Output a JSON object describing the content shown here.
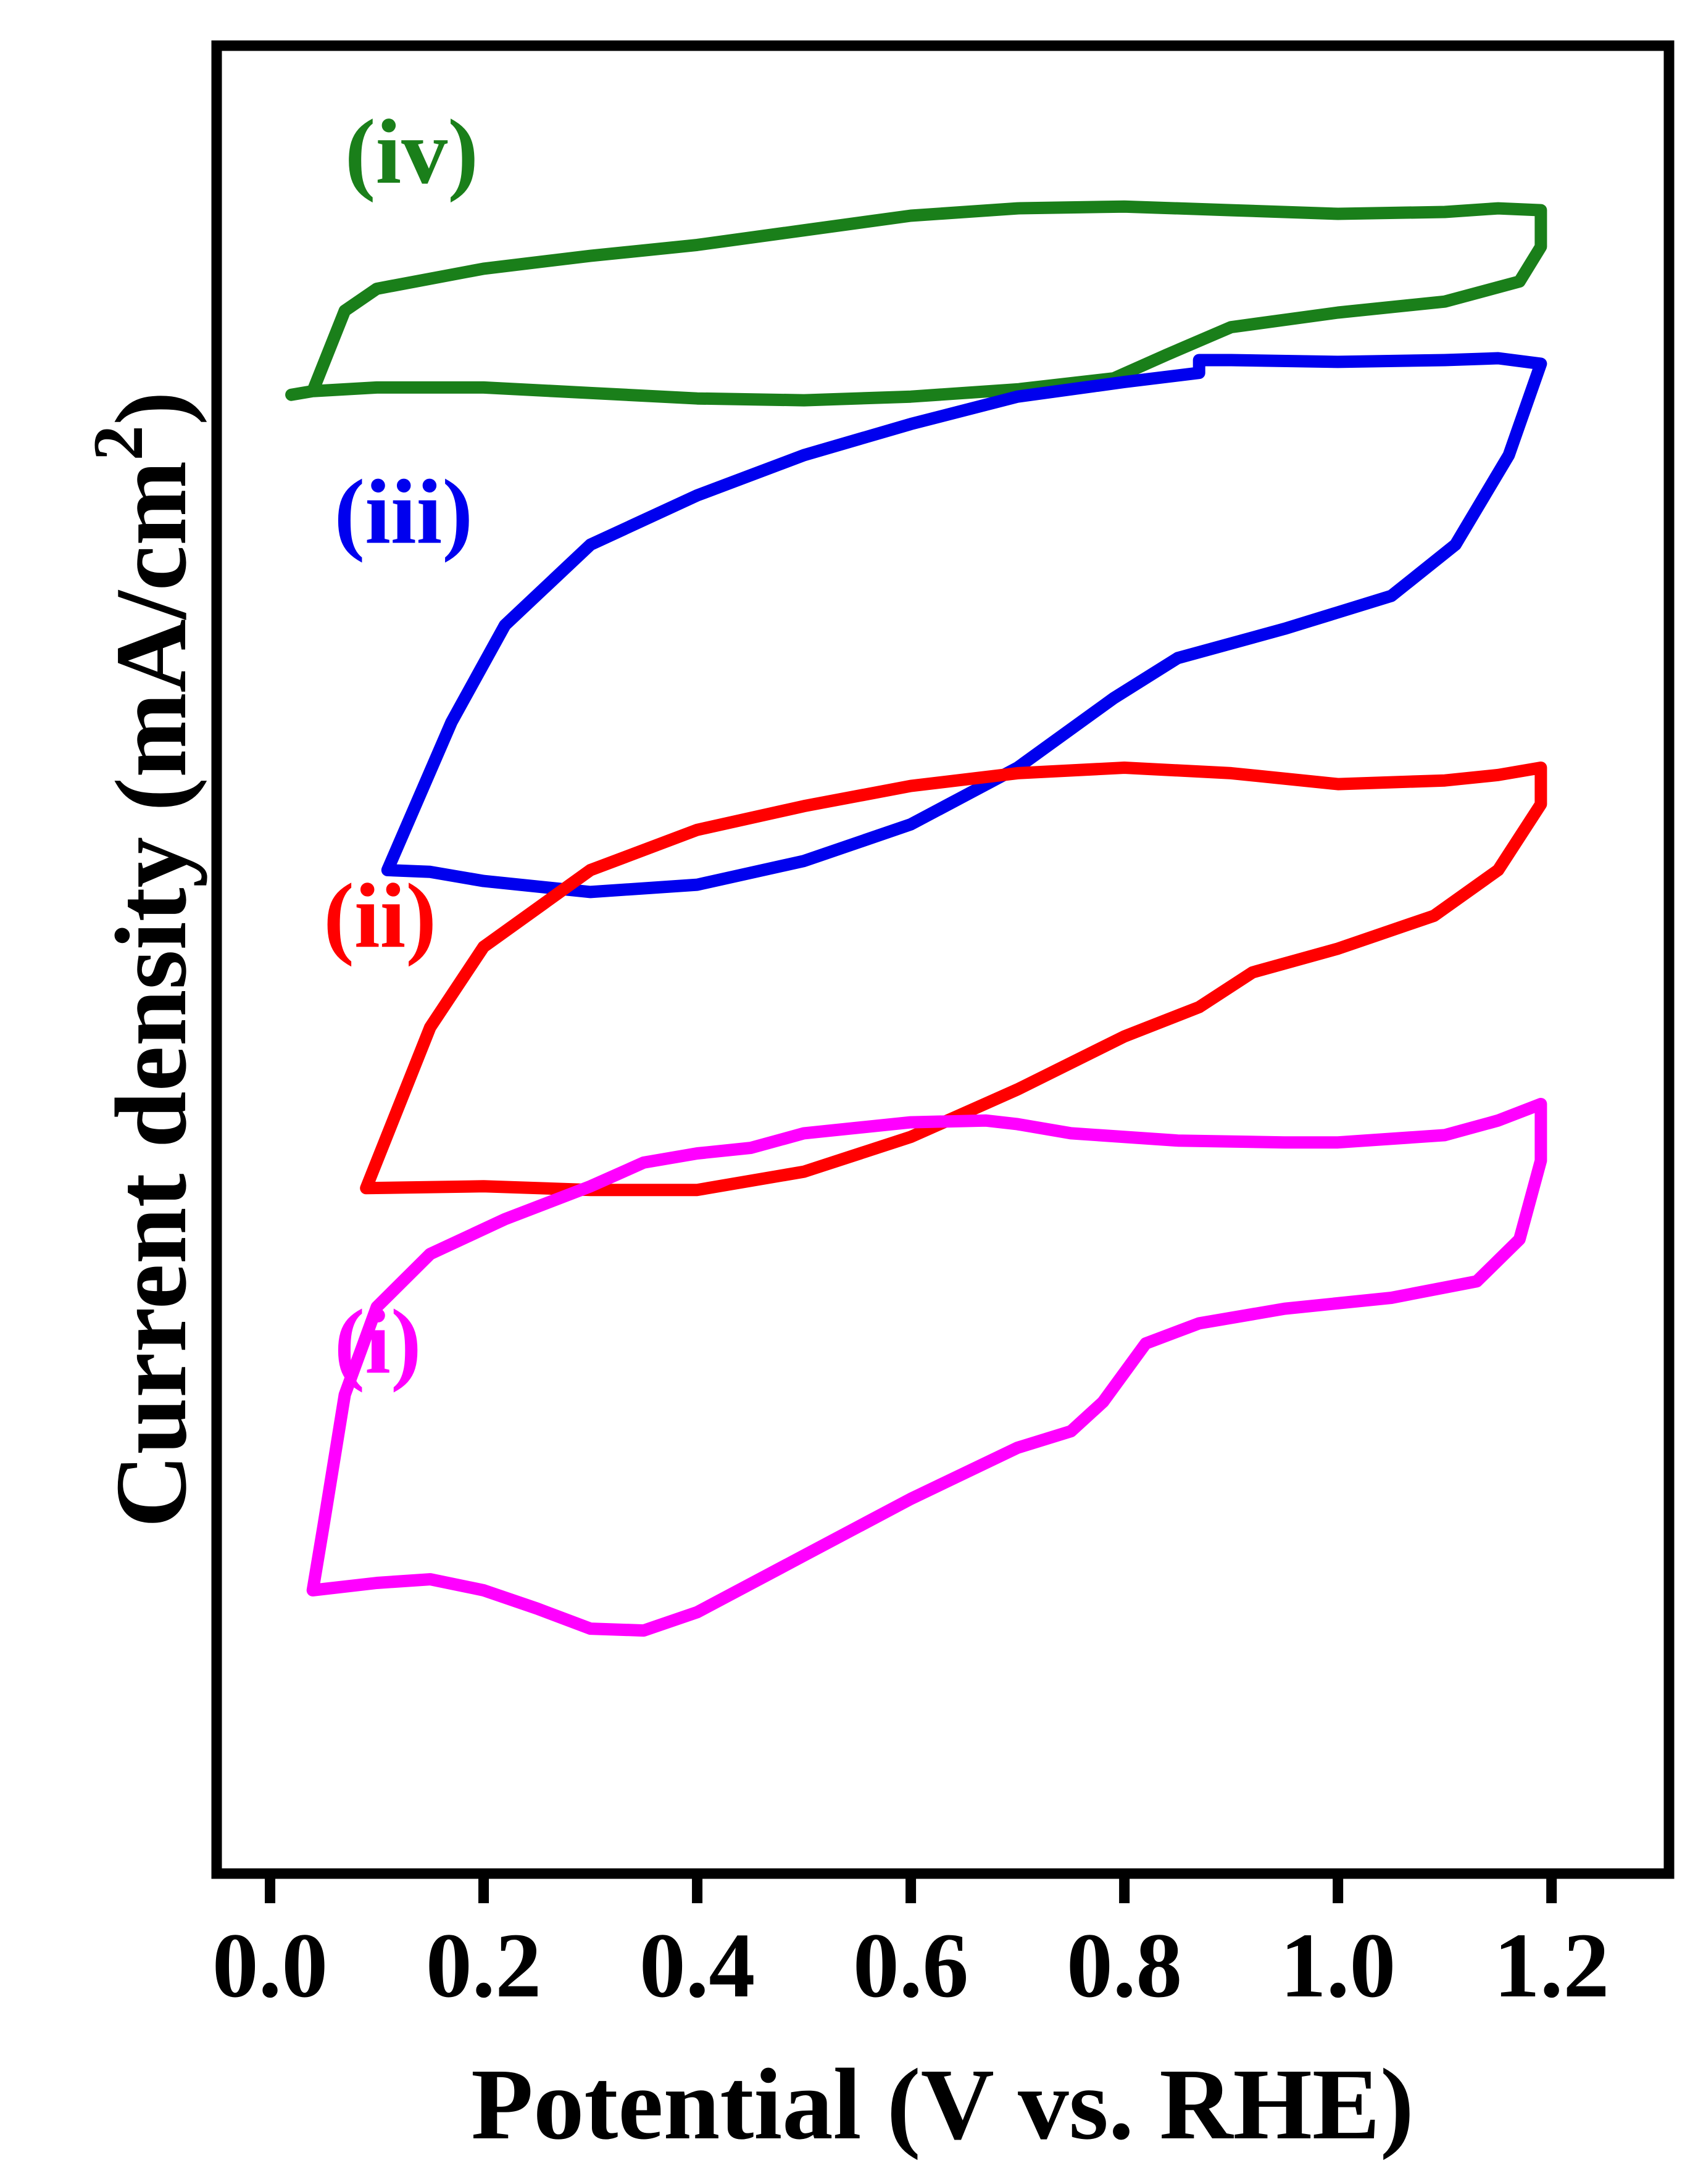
{
  "chart_data": {
    "type": "line",
    "title": "",
    "xlabel": "Potential (V vs. RHE)",
    "ylabel": "Current density (mA/cm",
    "ylabel_sup": "2",
    "ylabel_close": ")",
    "xlim": [
      -0.05,
      1.31
    ],
    "ylim": [
      0,
      100
    ],
    "y_ticks_shown": false,
    "grid": false,
    "x_ticks": [
      0.0,
      0.2,
      0.4,
      0.6,
      0.8,
      1.0,
      1.2
    ],
    "x_tick_labels": [
      "0.0",
      "0.2",
      "0.4",
      "0.6",
      "0.8",
      "1.0",
      "1.2"
    ],
    "series": [
      {
        "name": "(iv)",
        "color": "#1a7f1a",
        "label_at": [
          0.07,
          92.5
        ],
        "points": [
          [
            0.02,
            80.9
          ],
          [
            0.04,
            81.1
          ],
          [
            0.1,
            81.3
          ],
          [
            0.2,
            81.3
          ],
          [
            0.3,
            81.0
          ],
          [
            0.4,
            80.7
          ],
          [
            0.5,
            80.6
          ],
          [
            0.6,
            80.8
          ],
          [
            0.7,
            81.2
          ],
          [
            0.79,
            81.8
          ],
          [
            0.84,
            83.1
          ],
          [
            0.9,
            84.6
          ],
          [
            1.0,
            85.4
          ],
          [
            1.1,
            86.0
          ],
          [
            1.17,
            87.1
          ],
          [
            1.19,
            89.0
          ],
          [
            1.19,
            91.0
          ],
          [
            1.15,
            91.1
          ],
          [
            1.1,
            90.9
          ],
          [
            1.0,
            90.8
          ],
          [
            0.9,
            91.0
          ],
          [
            0.8,
            91.2
          ],
          [
            0.7,
            91.1
          ],
          [
            0.6,
            90.7
          ],
          [
            0.5,
            89.9
          ],
          [
            0.4,
            89.1
          ],
          [
            0.3,
            88.5
          ],
          [
            0.2,
            87.8
          ],
          [
            0.1,
            86.7
          ],
          [
            0.07,
            85.5
          ],
          [
            0.04,
            81.1
          ]
        ]
      },
      {
        "name": "(iii)",
        "color": "#0000ee",
        "label_at": [
          0.06,
          72.8
        ],
        "points": [
          [
            0.11,
            54.9
          ],
          [
            0.15,
            54.8
          ],
          [
            0.2,
            54.3
          ],
          [
            0.3,
            53.7
          ],
          [
            0.4,
            54.1
          ],
          [
            0.5,
            55.4
          ],
          [
            0.6,
            57.4
          ],
          [
            0.7,
            60.5
          ],
          [
            0.79,
            64.3
          ],
          [
            0.85,
            66.5
          ],
          [
            0.95,
            68.1
          ],
          [
            1.05,
            69.9
          ],
          [
            1.11,
            72.7
          ],
          [
            1.16,
            77.6
          ],
          [
            1.19,
            82.6
          ],
          [
            1.15,
            82.9
          ],
          [
            1.1,
            82.8
          ],
          [
            1.0,
            82.7
          ],
          [
            0.9,
            82.8
          ],
          [
            0.87,
            82.8
          ],
          [
            0.87,
            82.1
          ],
          [
            0.8,
            81.6
          ],
          [
            0.7,
            80.8
          ],
          [
            0.6,
            79.3
          ],
          [
            0.5,
            77.6
          ],
          [
            0.4,
            75.4
          ],
          [
            0.3,
            72.7
          ],
          [
            0.22,
            68.3
          ],
          [
            0.17,
            63.0
          ],
          [
            0.11,
            54.9
          ]
        ]
      },
      {
        "name": "(ii)",
        "color": "#ff0000",
        "label_at": [
          0.05,
          50.7
        ],
        "points": [
          [
            0.09,
            37.5
          ],
          [
            0.2,
            37.6
          ],
          [
            0.3,
            37.4
          ],
          [
            0.4,
            37.4
          ],
          [
            0.5,
            38.4
          ],
          [
            0.6,
            40.3
          ],
          [
            0.7,
            42.9
          ],
          [
            0.8,
            45.8
          ],
          [
            0.87,
            47.4
          ],
          [
            0.92,
            49.3
          ],
          [
            1.0,
            50.6
          ],
          [
            1.09,
            52.4
          ],
          [
            1.15,
            54.9
          ],
          [
            1.19,
            58.5
          ],
          [
            1.19,
            60.5
          ],
          [
            1.15,
            60.1
          ],
          [
            1.1,
            59.8
          ],
          [
            1.0,
            59.6
          ],
          [
            0.9,
            60.2
          ],
          [
            0.8,
            60.5
          ],
          [
            0.7,
            60.2
          ],
          [
            0.6,
            59.5
          ],
          [
            0.5,
            58.4
          ],
          [
            0.4,
            57.1
          ],
          [
            0.3,
            54.9
          ],
          [
            0.2,
            50.7
          ],
          [
            0.15,
            46.3
          ],
          [
            0.09,
            37.5
          ]
        ]
      },
      {
        "name": "(i)",
        "color": "#ff00ff",
        "label_at": [
          0.06,
          27.4
        ],
        "points": [
          [
            0.04,
            15.5
          ],
          [
            0.1,
            15.9
          ],
          [
            0.15,
            16.1
          ],
          [
            0.2,
            15.5
          ],
          [
            0.25,
            14.5
          ],
          [
            0.3,
            13.4
          ],
          [
            0.35,
            13.3
          ],
          [
            0.4,
            14.3
          ],
          [
            0.5,
            17.4
          ],
          [
            0.6,
            20.5
          ],
          [
            0.7,
            23.3
          ],
          [
            0.75,
            24.2
          ],
          [
            0.78,
            25.8
          ],
          [
            0.82,
            29.0
          ],
          [
            0.87,
            30.1
          ],
          [
            0.95,
            30.9
          ],
          [
            1.05,
            31.5
          ],
          [
            1.13,
            32.4
          ],
          [
            1.17,
            34.7
          ],
          [
            1.19,
            39.0
          ],
          [
            1.19,
            42.1
          ],
          [
            1.15,
            41.2
          ],
          [
            1.1,
            40.4
          ],
          [
            1.0,
            40.0
          ],
          [
            0.95,
            40.0
          ],
          [
            0.85,
            40.1
          ],
          [
            0.75,
            40.5
          ],
          [
            0.7,
            41.0
          ],
          [
            0.67,
            41.2
          ],
          [
            0.6,
            41.1
          ],
          [
            0.5,
            40.5
          ],
          [
            0.45,
            39.7
          ],
          [
            0.4,
            39.4
          ],
          [
            0.35,
            38.9
          ],
          [
            0.3,
            37.6
          ],
          [
            0.22,
            35.8
          ],
          [
            0.15,
            33.9
          ],
          [
            0.1,
            31.0
          ],
          [
            0.07,
            26.2
          ],
          [
            0.05,
            19.0
          ],
          [
            0.04,
            15.5
          ]
        ]
      }
    ]
  }
}
